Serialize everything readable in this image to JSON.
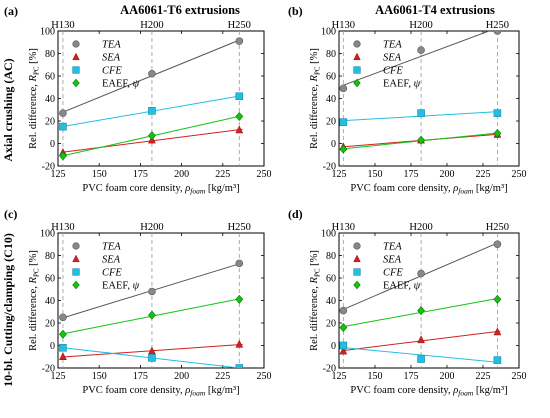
{
  "col_titles": [
    "AA6061-T6 extrusions",
    "AA6061-T4 extrusions"
  ],
  "row_labels": [
    "Axial crushing (AC)",
    "10-bl. Cutting/clamping (C10)"
  ],
  "panel_tags": [
    "(a)",
    "(b)",
    "(c)",
    "(d)"
  ],
  "colors": {
    "TEA": "#888888",
    "SEA": "#d42020",
    "CFE": "#22bfe3",
    "EAEF": "#11c511",
    "trend_TEA": "#555555",
    "vline": "#999999"
  },
  "chart_data": [
    {
      "type": "scatter",
      "panel": "(a)",
      "xlabel": "PVC foam core density, ρfoam [kg/m³]",
      "ylabel": "Rel. difference, RPC [%]",
      "xlim": [
        125,
        250
      ],
      "ylim": [
        -20,
        100
      ],
      "xticks": [
        125,
        150,
        175,
        200,
        225,
        250
      ],
      "yticks": [
        -20,
        0,
        20,
        40,
        60,
        80,
        100
      ],
      "ref_lines": [
        {
          "x": 128,
          "label": "H130"
        },
        {
          "x": 182,
          "label": "H200"
        },
        {
          "x": 235,
          "label": "H250"
        }
      ],
      "legend_position": "top-left",
      "grid": false,
      "series": [
        {
          "name": "TEA",
          "x": [
            128,
            182,
            235
          ],
          "y": [
            27,
            62,
            91
          ]
        },
        {
          "name": "SEA",
          "x": [
            128,
            182,
            235
          ],
          "y": [
            -8,
            3,
            12
          ]
        },
        {
          "name": "CFE",
          "x": [
            128,
            182,
            235
          ],
          "y": [
            15,
            29,
            42
          ]
        },
        {
          "name": "EAEF, ψ",
          "x": [
            128,
            182,
            235
          ],
          "y": [
            -11,
            7,
            24
          ]
        }
      ]
    },
    {
      "type": "scatter",
      "panel": "(b)",
      "xlabel": "PVC foam core density, ρfoam [kg/m³]",
      "ylabel": "Rel. difference, RPC [%]",
      "xlim": [
        125,
        250
      ],
      "ylim": [
        -20,
        100
      ],
      "xticks": [
        125,
        150,
        175,
        200,
        225,
        250
      ],
      "yticks": [
        -20,
        0,
        20,
        40,
        60,
        80,
        100
      ],
      "ref_lines": [
        {
          "x": 128,
          "label": "H130"
        },
        {
          "x": 182,
          "label": "H200"
        },
        {
          "x": 235,
          "label": "H250"
        }
      ],
      "legend_position": "top-left",
      "grid": false,
      "series": [
        {
          "name": "TEA",
          "x": [
            128,
            182,
            235
          ],
          "y": [
            49,
            83,
            100
          ]
        },
        {
          "name": "SEA",
          "x": [
            128,
            182,
            235
          ],
          "y": [
            -3,
            3,
            8
          ]
        },
        {
          "name": "CFE",
          "x": [
            128,
            182,
            235
          ],
          "y": [
            19,
            27,
            27
          ]
        },
        {
          "name": "EAEF, ψ",
          "x": [
            128,
            182,
            235
          ],
          "y": [
            -5,
            3,
            9
          ]
        }
      ]
    },
    {
      "type": "scatter",
      "panel": "(c)",
      "xlabel": "PVC foam core density, ρfoam [kg/m³]",
      "ylabel": "Rel. difference, RPC [%]",
      "xlim": [
        125,
        250
      ],
      "ylim": [
        -20,
        100
      ],
      "xticks": [
        125,
        150,
        175,
        200,
        225,
        250
      ],
      "yticks": [
        -20,
        0,
        20,
        40,
        60,
        80,
        100
      ],
      "ref_lines": [
        {
          "x": 128,
          "label": "H130"
        },
        {
          "x": 182,
          "label": "H200"
        },
        {
          "x": 235,
          "label": "H250"
        }
      ],
      "legend_position": "top-left",
      "grid": false,
      "series": [
        {
          "name": "TEA",
          "x": [
            128,
            182,
            235
          ],
          "y": [
            25,
            48,
            73
          ]
        },
        {
          "name": "SEA",
          "x": [
            128,
            182,
            235
          ],
          "y": [
            -10,
            -5,
            1
          ]
        },
        {
          "name": "CFE",
          "x": [
            128,
            182,
            235
          ],
          "y": [
            -2,
            -11,
            -20
          ]
        },
        {
          "name": "EAEF, ψ",
          "x": [
            128,
            182,
            235
          ],
          "y": [
            10,
            27,
            41
          ]
        }
      ]
    },
    {
      "type": "scatter",
      "panel": "(d)",
      "xlabel": "PVC foam core density, ρfoam [kg/m³]",
      "ylabel": "Rel. difference, RPC [%]",
      "xlim": [
        125,
        250
      ],
      "ylim": [
        -20,
        100
      ],
      "xticks": [
        125,
        150,
        175,
        200,
        225,
        250
      ],
      "yticks": [
        -20,
        0,
        20,
        40,
        60,
        80,
        100
      ],
      "ref_lines": [
        {
          "x": 128,
          "label": "H130"
        },
        {
          "x": 182,
          "label": "H200"
        },
        {
          "x": 235,
          "label": "H250"
        }
      ],
      "legend_position": "top-left",
      "grid": false,
      "series": [
        {
          "name": "TEA",
          "x": [
            128,
            182,
            235
          ],
          "y": [
            31,
            64,
            90
          ]
        },
        {
          "name": "SEA",
          "x": [
            128,
            182,
            235
          ],
          "y": [
            -5,
            5,
            12
          ]
        },
        {
          "name": "CFE",
          "x": [
            128,
            182,
            235
          ],
          "y": [
            0,
            -12,
            -13
          ]
        },
        {
          "name": "EAEF, ψ",
          "x": [
            128,
            182,
            235
          ],
          "y": [
            16,
            31,
            41
          ]
        }
      ]
    }
  ]
}
